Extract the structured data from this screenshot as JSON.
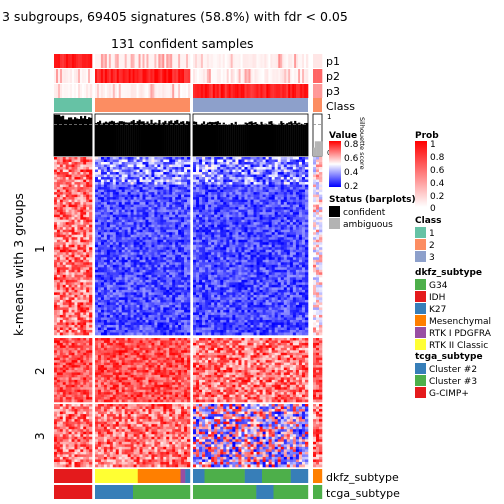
{
  "title": "3 subgroups, 69405 signatures (58.8%) with fdr < 0.05",
  "subtitle": "131 confident samples",
  "row_axis_label": "k-means with 3 groups",
  "row_groups": [
    "1",
    "2",
    "3"
  ],
  "track_labels": [
    "p1",
    "p2",
    "p3",
    "Class"
  ],
  "silhouette_label": "Silhouette score",
  "silhouette_ticks": [
    "1",
    "0"
  ],
  "bottom_track_labels": [
    "dkfz_subtype",
    "tcga_subtype"
  ],
  "legends": {
    "value": {
      "title": "Value",
      "ticks": [
        "0.8",
        "0.6",
        "0.4",
        "0.2"
      ]
    },
    "prob": {
      "title": "Prob",
      "ticks": [
        "1",
        "0.8",
        "0.6",
        "0.4",
        "0.2",
        "0"
      ]
    },
    "status": {
      "title": "Status (barplots)",
      "items": [
        {
          "label": "confident",
          "color": "#000000"
        },
        {
          "label": "ambiguous",
          "color": "#b3b3b3"
        }
      ]
    },
    "class": {
      "title": "Class",
      "items": [
        {
          "label": "1",
          "color": "#66c2a5"
        },
        {
          "label": "2",
          "color": "#fc8d62"
        },
        {
          "label": "3",
          "color": "#8da0cb"
        }
      ]
    },
    "dkfz_subtype": {
      "title": "dkfz_subtype",
      "items": [
        {
          "label": "G34",
          "color": "#4daf4a"
        },
        {
          "label": "IDH",
          "color": "#e41a1c"
        },
        {
          "label": "K27",
          "color": "#377eb8"
        },
        {
          "label": "Mesenchymal",
          "color": "#ff7f00"
        },
        {
          "label": "RTK I PDGFRA",
          "color": "#984ea3"
        },
        {
          "label": "RTK II Classic",
          "color": "#ffff33"
        }
      ]
    },
    "tcga_subtype": {
      "title": "tcga_subtype",
      "items": [
        {
          "label": "Cluster #2",
          "color": "#377eb8"
        },
        {
          "label": "Cluster #3",
          "color": "#4daf4a"
        },
        {
          "label": "G-CIMP+",
          "color": "#e41a1c"
        }
      ]
    }
  },
  "chart_data": {
    "type": "heatmap",
    "title": "3 subgroups, 69405 signatures (58.8%) with fdr < 0.05",
    "subtitle": "131 confident samples",
    "ylabel": "k-means with 3 groups",
    "value_range": [
      0.2,
      0.8
    ],
    "prob_range": [
      0,
      1
    ],
    "column_classes": [
      {
        "class": "1",
        "mean_silhouette": 0.92
      },
      {
        "class": "2",
        "mean_silhouette": 0.82
      },
      {
        "class": "3",
        "mean_silhouette": 0.79
      },
      {
        "class": "ambiguous",
        "mean_silhouette": 0.3
      }
    ],
    "row_group_pattern": [
      {
        "group": "1",
        "class_1": "high",
        "class_2": "low",
        "class_3": "low"
      },
      {
        "group": "2",
        "class_1": "high",
        "class_2": "high",
        "class_3": "high"
      },
      {
        "group": "3",
        "class_1": "high",
        "class_2": "high",
        "class_3": "mixed"
      }
    ]
  }
}
